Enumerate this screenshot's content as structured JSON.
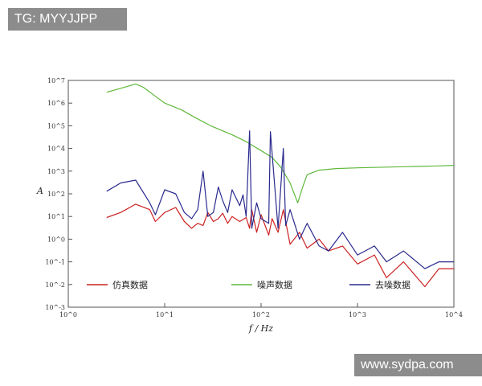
{
  "watermarks": {
    "top": "TG: MYYJJPP",
    "bottom": "www.sydpa.com"
  },
  "chart_data": {
    "type": "line",
    "xscale": "log",
    "yscale": "log",
    "xlim": [
      1,
      10000
    ],
    "ylim": [
      0.001,
      10000000
    ],
    "xlabel": "f / Hz",
    "ylabel": "A",
    "x_ticks": [
      "10^0",
      "10^1",
      "10^2",
      "10^3",
      "10^4"
    ],
    "y_ticks": [
      "10^-3",
      "10^-2",
      "10^-1",
      "10^0",
      "10^1",
      "10^2",
      "10^3",
      "10^4",
      "10^5",
      "10^6",
      "10^7"
    ],
    "legend_position": "bottom-left",
    "series": [
      {
        "name": "仿真数据",
        "color": "#cc2222",
        "x": [
          2.5,
          3.5,
          5,
          7,
          8,
          10,
          13,
          16,
          19,
          22,
          25,
          28,
          32,
          36,
          40,
          45,
          50,
          60,
          70,
          76,
          80,
          90,
          100,
          120,
          130,
          150,
          170,
          200,
          250,
          300,
          400,
          500,
          700,
          1000,
          1500,
          2000,
          3000,
          5000,
          7000,
          10000
        ],
        "y": [
          9,
          15,
          35,
          20,
          6,
          15,
          25,
          6,
          3,
          5,
          4,
          15,
          6,
          8,
          14,
          5,
          10,
          6,
          9,
          3,
          20,
          2,
          12,
          1.5,
          8,
          2,
          20,
          0.6,
          2,
          0.4,
          1,
          0.3,
          0.5,
          0.08,
          0.2,
          0.02,
          0.1,
          0.008,
          0.05,
          0.05
        ]
      },
      {
        "name": "噪声数据",
        "color": "#5fb83a",
        "x": [
          2.5,
          3.5,
          5,
          6,
          8,
          10,
          15,
          20,
          30,
          50,
          70,
          100,
          130,
          160,
          200,
          240,
          270,
          300,
          400,
          600,
          1000,
          2000,
          4000,
          7000,
          10000
        ],
        "y": [
          3000000,
          4500000,
          7000000,
          5000000,
          2000000,
          1000000,
          500000,
          250000,
          100000,
          40000,
          20000,
          8000,
          4000,
          1500,
          300,
          40,
          200,
          700,
          1100,
          1300,
          1400,
          1500,
          1600,
          1700,
          1800
        ]
      },
      {
        "name": "去噪数据",
        "color": "#2a2a8e",
        "x": [
          2.5,
          3.5,
          5,
          7,
          8,
          10,
          13,
          16,
          19,
          22,
          25,
          28,
          32,
          36,
          40,
          45,
          50,
          60,
          65,
          70,
          76,
          80,
          90,
          100,
          120,
          125,
          150,
          170,
          180,
          200,
          250,
          300,
          400,
          500,
          700,
          1000,
          1500,
          2000,
          3000,
          5000,
          7000,
          10000
        ],
        "y": [
          130,
          300,
          400,
          40,
          12,
          150,
          100,
          15,
          8,
          20,
          1000,
          10,
          15,
          200,
          50,
          15,
          150,
          30,
          90,
          10,
          60000,
          3,
          40,
          8,
          5,
          55000,
          3,
          10000,
          4,
          20,
          1,
          5,
          0.5,
          0.3,
          2,
          0.2,
          0.5,
          0.1,
          0.3,
          0.05,
          0.1,
          0.1
        ]
      }
    ]
  }
}
